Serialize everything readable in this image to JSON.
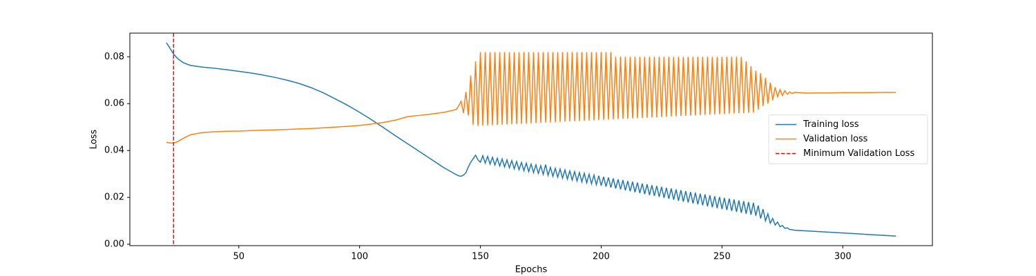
{
  "chart_data": {
    "type": "line",
    "x_label": "Epochs",
    "y_label": "Loss",
    "x": [
      20,
      21,
      22,
      23,
      24,
      25,
      27,
      30,
      35,
      40,
      45,
      50,
      55,
      60,
      65,
      70,
      75,
      80,
      85,
      90,
      95,
      100,
      105,
      110,
      115,
      120,
      125,
      130,
      135,
      140,
      141,
      142,
      143,
      144,
      145,
      146,
      147,
      148,
      149,
      150,
      151,
      152,
      153,
      154,
      155,
      156,
      157,
      158,
      159,
      160,
      161,
      162,
      163,
      164,
      165,
      166,
      167,
      168,
      169,
      170,
      171,
      172,
      173,
      174,
      175,
      176,
      177,
      178,
      179,
      180,
      181,
      182,
      183,
      184,
      185,
      186,
      187,
      188,
      189,
      190,
      191,
      192,
      193,
      194,
      195,
      196,
      197,
      198,
      199,
      200,
      201,
      202,
      203,
      204,
      205,
      206,
      207,
      208,
      209,
      210,
      211,
      212,
      213,
      214,
      215,
      216,
      217,
      218,
      219,
      220,
      221,
      222,
      223,
      224,
      225,
      226,
      227,
      228,
      229,
      230,
      231,
      232,
      233,
      234,
      235,
      236,
      237,
      238,
      239,
      240,
      241,
      242,
      243,
      244,
      245,
      246,
      247,
      248,
      249,
      250,
      251,
      252,
      253,
      254,
      255,
      256,
      257,
      258,
      259,
      260,
      261,
      262,
      263,
      264,
      265,
      266,
      267,
      268,
      269,
      270,
      271,
      272,
      273,
      274,
      275,
      276,
      277,
      278,
      279,
      280,
      285,
      290,
      295,
      300,
      305,
      310,
      315,
      320,
      322
    ],
    "series": [
      {
        "name": "Training loss",
        "color": "#1f77b4",
        "values": [
          0.086,
          0.0845,
          0.0828,
          0.0812,
          0.08,
          0.079,
          0.0775,
          0.0763,
          0.0756,
          0.0751,
          0.0745,
          0.0738,
          0.0731,
          0.0722,
          0.0712,
          0.07,
          0.0686,
          0.0668,
          0.0646,
          0.062,
          0.0593,
          0.0563,
          0.0531,
          0.0497,
          0.0462,
          0.0428,
          0.0394,
          0.036,
          0.0326,
          0.0297,
          0.0292,
          0.029,
          0.0295,
          0.0305,
          0.033,
          0.035,
          0.0365,
          0.038,
          0.036,
          0.035,
          0.0378,
          0.0346,
          0.0375,
          0.0342,
          0.0371,
          0.0338,
          0.0367,
          0.0334,
          0.0364,
          0.033,
          0.036,
          0.0326,
          0.0357,
          0.0322,
          0.0353,
          0.0318,
          0.0349,
          0.0314,
          0.0346,
          0.031,
          0.0342,
          0.0306,
          0.0339,
          0.0302,
          0.0335,
          0.0298,
          0.034,
          0.0294,
          0.0328,
          0.029,
          0.0324,
          0.0286,
          0.0321,
          0.0282,
          0.0317,
          0.0278,
          0.0313,
          0.0274,
          0.031,
          0.027,
          0.0306,
          0.0266,
          0.0303,
          0.0262,
          0.0299,
          0.0258,
          0.0295,
          0.0254,
          0.0292,
          0.025,
          0.0288,
          0.0246,
          0.0285,
          0.0242,
          0.0281,
          0.0238,
          0.0277,
          0.0234,
          0.0274,
          0.023,
          0.027,
          0.0226,
          0.0267,
          0.0222,
          0.0263,
          0.0218,
          0.0259,
          0.0214,
          0.0256,
          0.021,
          0.0252,
          0.0206,
          0.0249,
          0.0202,
          0.0245,
          0.0198,
          0.0241,
          0.0194,
          0.0238,
          0.019,
          0.0234,
          0.0186,
          0.0231,
          0.0182,
          0.0227,
          0.0178,
          0.0223,
          0.0174,
          0.022,
          0.017,
          0.0216,
          0.0166,
          0.0213,
          0.0162,
          0.0209,
          0.0158,
          0.0205,
          0.0154,
          0.0202,
          0.015,
          0.0198,
          0.0146,
          0.0195,
          0.0142,
          0.0191,
          0.0138,
          0.0187,
          0.0134,
          0.0184,
          0.013,
          0.018,
          0.0126,
          0.0177,
          0.0122,
          0.0165,
          0.011,
          0.015,
          0.01,
          0.013,
          0.009,
          0.011,
          0.0082,
          0.0095,
          0.0075,
          0.008,
          0.0068,
          0.007,
          0.0063,
          0.0062,
          0.006,
          0.0057,
          0.0054,
          0.0051,
          0.0048,
          0.0045,
          0.0042,
          0.0039,
          0.0036,
          0.0035
        ]
      },
      {
        "name": "Validation loss",
        "color": "#ff7f0e",
        "values": [
          0.0435,
          0.0433,
          0.0432,
          0.0432,
          0.0435,
          0.044,
          0.0452,
          0.0467,
          0.0477,
          0.048,
          0.0482,
          0.0483,
          0.0485,
          0.0487,
          0.0488,
          0.049,
          0.0492,
          0.0494,
          0.0497,
          0.05,
          0.0503,
          0.0507,
          0.0513,
          0.052,
          0.053,
          0.0545,
          0.055,
          0.0556,
          0.0563,
          0.0575,
          0.059,
          0.061,
          0.056,
          0.065,
          0.055,
          0.072,
          0.051,
          0.078,
          0.0505,
          0.082,
          0.0506,
          0.082,
          0.0507,
          0.082,
          0.0508,
          0.082,
          0.0509,
          0.082,
          0.051,
          0.082,
          0.0511,
          0.082,
          0.0512,
          0.082,
          0.0513,
          0.082,
          0.0514,
          0.082,
          0.0515,
          0.082,
          0.0516,
          0.082,
          0.0517,
          0.082,
          0.0518,
          0.082,
          0.0519,
          0.082,
          0.052,
          0.082,
          0.0521,
          0.082,
          0.0522,
          0.082,
          0.0523,
          0.082,
          0.0524,
          0.082,
          0.0525,
          0.082,
          0.0526,
          0.082,
          0.0527,
          0.082,
          0.0528,
          0.082,
          0.0529,
          0.082,
          0.053,
          0.082,
          0.0531,
          0.082,
          0.0532,
          0.082,
          0.0533,
          0.08,
          0.0534,
          0.08,
          0.0535,
          0.08,
          0.0536,
          0.08,
          0.0537,
          0.08,
          0.0538,
          0.08,
          0.0539,
          0.08,
          0.054,
          0.08,
          0.0541,
          0.08,
          0.0542,
          0.08,
          0.0543,
          0.08,
          0.0544,
          0.08,
          0.0545,
          0.08,
          0.0546,
          0.08,
          0.0547,
          0.08,
          0.0548,
          0.08,
          0.0549,
          0.08,
          0.055,
          0.08,
          0.0551,
          0.08,
          0.0552,
          0.08,
          0.0553,
          0.08,
          0.0554,
          0.08,
          0.0555,
          0.08,
          0.0556,
          0.08,
          0.0557,
          0.08,
          0.0558,
          0.08,
          0.0559,
          0.08,
          0.056,
          0.078,
          0.0561,
          0.076,
          0.0562,
          0.074,
          0.0575,
          0.073,
          0.059,
          0.071,
          0.06,
          0.069,
          0.0615,
          0.067,
          0.063,
          0.066,
          0.0635,
          0.0655,
          0.064,
          0.065,
          0.0643,
          0.0648,
          0.0645,
          0.0646,
          0.0646,
          0.0647,
          0.0647,
          0.0647,
          0.0648,
          0.0648,
          0.0648
        ]
      }
    ],
    "vline": {
      "name": "Minimum Validation Loss",
      "x": 23,
      "color": "#ff0000",
      "style": "dashed"
    },
    "xlim": [
      4.9,
      337.1
    ],
    "ylim": [
      -0.0006,
      0.0901
    ],
    "xticks": [
      50,
      100,
      150,
      200,
      250,
      300
    ],
    "yticks": [
      {
        "value": 0,
        "label": "0.00"
      },
      {
        "value": 0.02,
        "label": "0.02"
      },
      {
        "value": 0.04,
        "label": "0.04"
      },
      {
        "value": 0.06,
        "label": "0.06"
      },
      {
        "value": 0.08,
        "label": "0.08"
      }
    ],
    "legend": "center right",
    "grid": false
  }
}
